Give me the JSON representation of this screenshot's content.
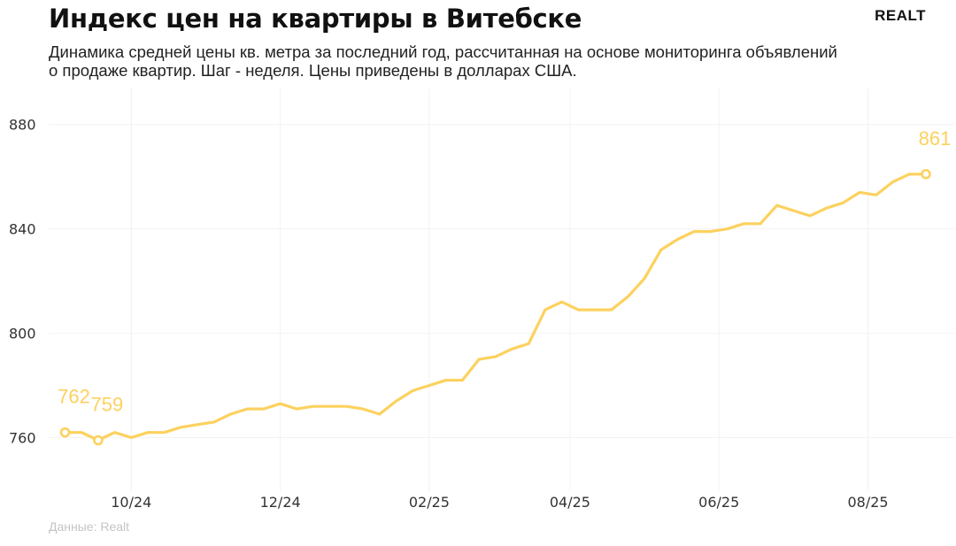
{
  "header": {
    "title": "Индекс цен на квартиры в Витебске",
    "subtitle": "Динамика средней цены кв. метра за последний год, рассчитанная на основе мониторинга объявлений о продаже квартир. Шаг - неделя. Цены приведены в долларах США.",
    "logo": "REALT"
  },
  "footer": {
    "source": "Данные: Realt"
  },
  "colors": {
    "line": "#fcd15e",
    "label": "#fcd15e",
    "grid": "#f2f2f2",
    "title": "#111111"
  },
  "chart_data": {
    "type": "line",
    "title": "Индекс цен на квартиры в Витебске",
    "xlabel": "",
    "ylabel": "",
    "ylim": [
      730,
      885
    ],
    "yticks": [
      760,
      800,
      840,
      880
    ],
    "xticks": [
      {
        "label": "10/24",
        "week": 4
      },
      {
        "label": "12/24",
        "week": 13
      },
      {
        "label": "02/25",
        "week": 22
      },
      {
        "label": "04/25",
        "week": 30.5
      },
      {
        "label": "06/25",
        "week": 39.5
      },
      {
        "label": "08/25",
        "week": 48.5
      }
    ],
    "grid": true,
    "legend": "none",
    "series": [
      {
        "values": [
          762,
          762,
          759,
          762,
          760,
          762,
          762,
          764,
          765,
          766,
          769,
          771,
          771,
          773,
          771,
          772,
          772,
          772,
          771,
          769,
          774,
          778,
          780,
          782,
          782,
          790,
          791,
          794,
          796,
          809,
          812,
          809,
          809,
          809,
          814,
          821,
          832,
          836,
          839,
          839,
          840,
          842,
          842,
          849,
          847,
          845,
          848,
          850,
          854,
          853,
          858,
          861,
          861
        ]
      }
    ],
    "annotations": [
      {
        "week": 0,
        "value": 762,
        "label": "762"
      },
      {
        "week": 2,
        "value": 759,
        "label": "759"
      },
      {
        "week": 52,
        "value": 861,
        "label": "861"
      }
    ]
  }
}
